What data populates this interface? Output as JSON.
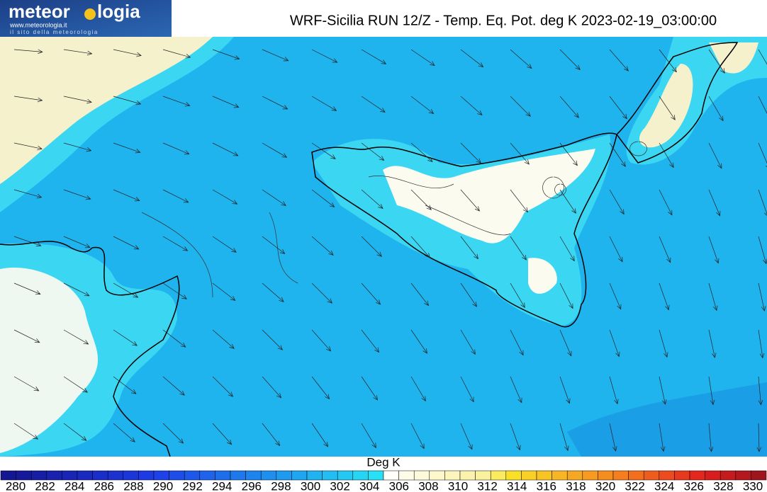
{
  "logo": {
    "name_start": "meteor",
    "name_end": "logia",
    "url": "www.meteorologia.it",
    "tagline": "il sito della meteorologia"
  },
  "title": "WRF-Sicilia RUN 12/Z - Temp. Eq. Pot. deg K 2023-02-19_03:00:00",
  "colorbar": {
    "unit": "Deg K",
    "labels": [
      "280",
      "282",
      "284",
      "286",
      "288",
      "290",
      "292",
      "294",
      "296",
      "298",
      "300",
      "302",
      "304",
      "306",
      "308",
      "310",
      "312",
      "314",
      "316",
      "318",
      "320",
      "322",
      "324",
      "326",
      "328",
      "330"
    ]
  }
}
